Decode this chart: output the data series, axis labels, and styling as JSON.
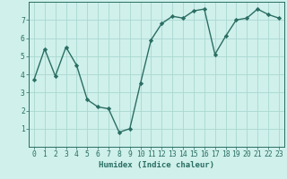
{
  "x": [
    0,
    1,
    2,
    3,
    4,
    5,
    6,
    7,
    8,
    9,
    10,
    11,
    12,
    13,
    14,
    15,
    16,
    17,
    18,
    19,
    20,
    21,
    22,
    23
  ],
  "y": [
    3.7,
    5.4,
    3.9,
    5.5,
    4.5,
    2.6,
    2.2,
    2.1,
    0.8,
    1.0,
    3.5,
    5.9,
    6.8,
    7.2,
    7.1,
    7.5,
    7.6,
    5.1,
    6.1,
    7.0,
    7.1,
    7.6,
    7.3,
    7.1
  ],
  "line_color": "#2a6e63",
  "marker": "D",
  "marker_size": 2.2,
  "line_width": 1.0,
  "bg_color": "#cff0eb",
  "grid_color": "#aad8d1",
  "xlabel": "Humidex (Indice chaleur)",
  "xlim": [
    -0.5,
    23.5
  ],
  "ylim": [
    0,
    8
  ],
  "yticks": [
    1,
    2,
    3,
    4,
    5,
    6,
    7
  ],
  "xticks": [
    0,
    1,
    2,
    3,
    4,
    5,
    6,
    7,
    8,
    9,
    10,
    11,
    12,
    13,
    14,
    15,
    16,
    17,
    18,
    19,
    20,
    21,
    22,
    23
  ],
  "xlabel_fontsize": 6.5,
  "tick_fontsize": 5.8,
  "tick_color": "#2a6e63",
  "axis_color": "#2a6e63"
}
